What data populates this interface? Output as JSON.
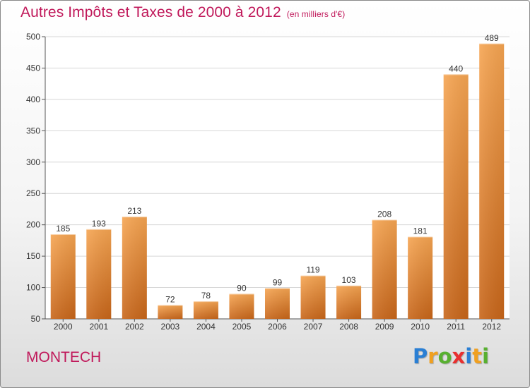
{
  "chart_data": {
    "type": "bar",
    "title": "Autres Impôts et Taxes de 2000 à 2012",
    "subtitle": "(en milliers d'€)",
    "categories": [
      "2000",
      "2001",
      "2002",
      "2003",
      "2004",
      "2005",
      "2006",
      "2007",
      "2008",
      "2009",
      "2010",
      "2011",
      "2012"
    ],
    "values": [
      185,
      193,
      213,
      72,
      78,
      90,
      99,
      119,
      103,
      208,
      181,
      440,
      489
    ],
    "ylim": [
      50,
      500
    ],
    "yticks": [
      50,
      100,
      150,
      200,
      250,
      300,
      350,
      400,
      450,
      500
    ],
    "grid": true,
    "bar_color": "#f0913a"
  },
  "commune": "MONTECH",
  "brand": {
    "letters": [
      "P",
      "r",
      "o",
      "x",
      "i",
      "t",
      "i"
    ],
    "colors": [
      "#2a7fd4",
      "#f0a020",
      "#58b030",
      "#e83030",
      "#2a7fd4",
      "#f0a020",
      "#58b030"
    ]
  }
}
